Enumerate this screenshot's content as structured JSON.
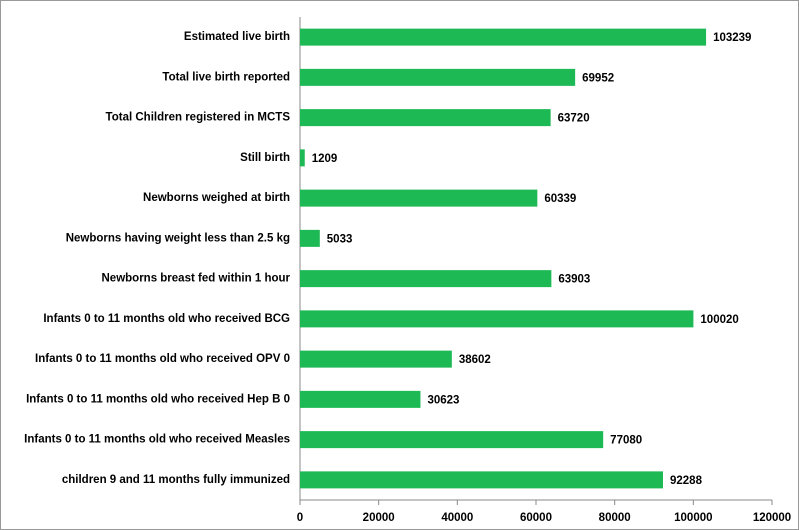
{
  "chart_data": {
    "type": "bar",
    "orientation": "horizontal",
    "categories": [
      "Estimated live birth",
      "Total live birth reported",
      "Total Children registered in MCTS",
      "Still birth",
      "Newborns weighed at birth",
      "Newborns having weight less than 2.5 kg",
      "Newborns breast fed within 1 hour",
      "Infants 0 to 11 months old who received BCG",
      "Infants 0 to 11 months old who received OPV 0",
      "Infants 0 to 11 months old who received Hep B 0",
      "Infants 0 to 11 months old who received Measles",
      "children 9 and 11 months fully immunized"
    ],
    "values": [
      103239,
      69952,
      63720,
      1209,
      60339,
      5033,
      63903,
      100020,
      38602,
      30623,
      77080,
      92288
    ],
    "color": "#1db954",
    "xlim": [
      0,
      120000
    ],
    "xticks": [
      0,
      20000,
      40000,
      60000,
      80000,
      100000,
      120000
    ],
    "grid": false
  }
}
